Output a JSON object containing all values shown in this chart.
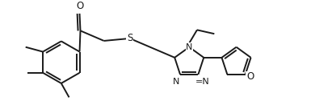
{
  "background": "#ffffff",
  "line_color": "#1a1a1a",
  "lw": 1.4,
  "figsize": [
    4.16,
    1.36
  ],
  "dpi": 100,
  "xlim": [
    0,
    4.16
  ],
  "ylim": [
    0,
    1.36
  ]
}
